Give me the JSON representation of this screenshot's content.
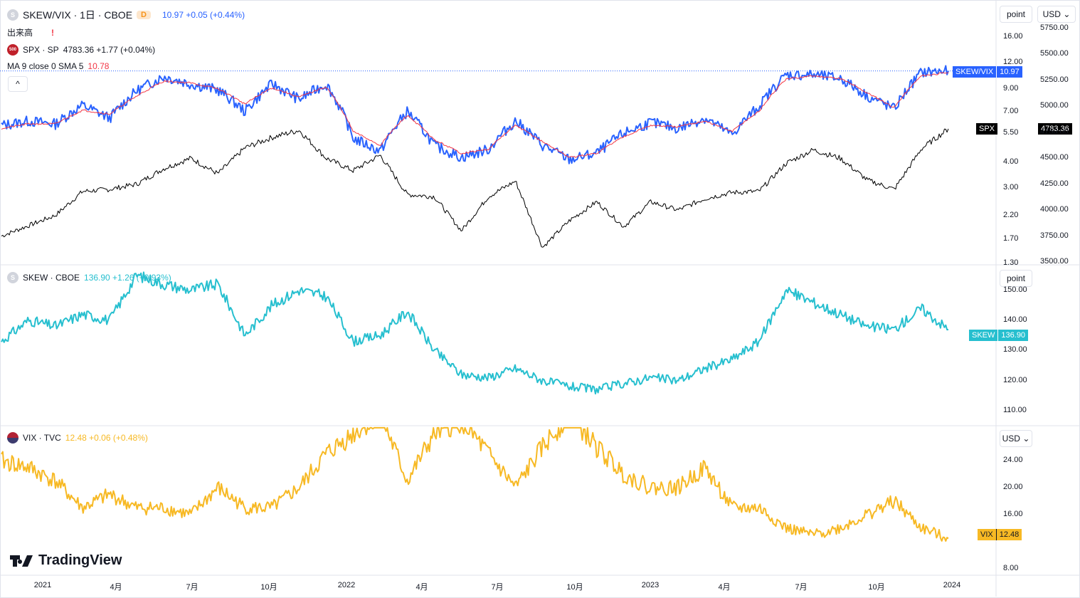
{
  "header": {
    "symbol": "SKEW/VIX · 1日 · CBOE",
    "badge": "D",
    "price_change": "10.97  +0.05 (+0.44%)",
    "volume_label": "出来高",
    "warning": "!",
    "spx_icon_text": "500",
    "spx_label": "SPX · SP",
    "spx_values": "4783.36  +1.77 (+0.04%)",
    "ma_label": "MA 9 close 0 SMA 5",
    "ma_value": "10.78",
    "collapse": "^"
  },
  "pane_skew": {
    "icon_text": "S",
    "label": "SKEW · CBOE",
    "values": "136.90  +1.26 (+0.93%)"
  },
  "pane_vix": {
    "label": "VIX · TVC",
    "values": "12.48  +0.06 (+0.48%)"
  },
  "right_controls": {
    "scale1": "point",
    "currency1": "USD",
    "scale2": "point",
    "currency2": "USD"
  },
  "tags": {
    "skewvix_name": "SKEW/VIX",
    "skewvix_val": "10.97",
    "spx_name": "SPX",
    "spx_val": "4783.36",
    "skew_name": "SKEW",
    "skew_val": "136.90",
    "vix_name": "VIX",
    "vix_val": "12.48"
  },
  "axes": {
    "ratio_ticks": [
      "16.00",
      "12.00",
      "9.00",
      "7.00",
      "5.50",
      "4.00",
      "3.00",
      "2.20",
      "1.70",
      "1.30"
    ],
    "spx_ticks": [
      "5750.00",
      "5500.00",
      "5250.00",
      "5000.00",
      "4750.00",
      "4500.00",
      "4250.00",
      "4000.00",
      "3750.00",
      "3500.00"
    ],
    "skew_ticks": [
      "150.00",
      "140.00",
      "130.00",
      "120.00",
      "110.00"
    ],
    "vix_ticks": [
      "24.00",
      "20.00",
      "16.00",
      "8.00"
    ],
    "x_labels": [
      "2021",
      "4月",
      "7月",
      "10月",
      "2022",
      "4月",
      "7月",
      "10月",
      "2023",
      "4月",
      "7月",
      "10月",
      "2024"
    ]
  },
  "colors": {
    "skewvix": "#2962ff",
    "ma": "#f23645",
    "spx": "#000000",
    "skew": "#26bfcf",
    "vix": "#f7b924"
  },
  "logo": "TradingView",
  "chart_data": [
    {
      "type": "line",
      "title": "SKEW/VIX · 1日 · CBOE",
      "x": [
        "2021-01",
        "2021-02",
        "2021-03",
        "2021-04",
        "2021-05",
        "2021-06",
        "2021-07",
        "2021-08",
        "2021-09",
        "2021-10",
        "2021-11",
        "2021-12",
        "2022-01",
        "2022-02",
        "2022-03",
        "2022-04",
        "2022-05",
        "2022-06",
        "2022-07",
        "2022-08",
        "2022-09",
        "2022-10",
        "2022-11",
        "2022-12",
        "2023-01",
        "2023-02",
        "2023-03",
        "2023-04",
        "2023-05",
        "2023-06",
        "2023-07",
        "2023-08",
        "2023-09",
        "2023-10",
        "2023-11",
        "2023-12"
      ],
      "series": [
        {
          "name": "SKEW/VIX",
          "values": [
            6.0,
            6.3,
            6.1,
            7.5,
            6.5,
            8.8,
            10.3,
            9.5,
            8.9,
            7.0,
            9.5,
            8.0,
            9.5,
            5.2,
            4.5,
            7.0,
            4.8,
            4.2,
            4.6,
            6.3,
            4.8,
            4.1,
            4.4,
            5.5,
            6.2,
            5.8,
            6.5,
            5.4,
            7.4,
            10.5,
            10.5,
            10.1,
            8.3,
            7.2,
            10.8,
            10.97
          ]
        },
        {
          "name": "MA 9 close 0 SMA 5",
          "values": [
            5.8,
            6.1,
            6.1,
            7.1,
            6.8,
            8.3,
            9.8,
            9.6,
            9.0,
            7.6,
            9.1,
            8.2,
            9.2,
            5.6,
            4.8,
            6.7,
            5.1,
            4.4,
            4.6,
            6.0,
            5.0,
            4.2,
            4.4,
            5.3,
            6.0,
            5.9,
            6.3,
            5.6,
            7.0,
            10.0,
            10.4,
            10.1,
            8.6,
            7.3,
            10.4,
            10.78
          ]
        },
        {
          "name": "SPX",
          "values": [
            3750,
            3850,
            3950,
            4180,
            4200,
            4250,
            4400,
            4500,
            4350,
            4600,
            4700,
            4770,
            4500,
            4380,
            4530,
            4150,
            4130,
            3800,
            4130,
            4280,
            3640,
            3900,
            4080,
            3840,
            4080,
            4000,
            4110,
            4170,
            4180,
            4450,
            4580,
            4500,
            4290,
            4200,
            4590,
            4783.36
          ]
        }
      ],
      "ylim": [
        1.3,
        16.0
      ],
      "ylim_right": [
        3500,
        5750
      ],
      "y_scale": "log"
    },
    {
      "type": "line",
      "title": "SKEW · CBOE",
      "x": [
        "2021-01",
        "2021-02",
        "2021-03",
        "2021-04",
        "2021-05",
        "2021-06",
        "2021-07",
        "2021-08",
        "2021-09",
        "2021-10",
        "2021-11",
        "2021-12",
        "2022-01",
        "2022-02",
        "2022-03",
        "2022-04",
        "2022-05",
        "2022-06",
        "2022-07",
        "2022-08",
        "2022-09",
        "2022-10",
        "2022-11",
        "2022-12",
        "2023-01",
        "2023-02",
        "2023-03",
        "2023-04",
        "2023-05",
        "2023-06",
        "2023-07",
        "2023-08",
        "2023-09",
        "2023-10",
        "2023-11",
        "2023-12"
      ],
      "series": [
        {
          "name": "SKEW",
          "values": [
            133,
            140,
            138,
            142,
            140,
            155,
            152,
            150,
            152,
            135,
            145,
            150,
            148,
            133,
            135,
            143,
            130,
            122,
            121,
            124,
            120,
            118,
            117,
            119,
            121,
            120,
            124,
            127,
            133,
            150,
            146,
            142,
            138,
            137,
            144,
            136.9
          ]
        }
      ],
      "ylim": [
        105,
        157
      ]
    },
    {
      "type": "line",
      "title": "VIX · TVC",
      "x": [
        "2021-01",
        "2021-02",
        "2021-03",
        "2021-04",
        "2021-05",
        "2021-06",
        "2021-07",
        "2021-08",
        "2021-09",
        "2021-10",
        "2021-11",
        "2021-12",
        "2022-01",
        "2022-02",
        "2022-03",
        "2022-04",
        "2022-05",
        "2022-06",
        "2022-07",
        "2022-08",
        "2022-09",
        "2022-10",
        "2022-11",
        "2022-12",
        "2023-01",
        "2023-02",
        "2023-03",
        "2023-04",
        "2023-05",
        "2023-06",
        "2023-07",
        "2023-08",
        "2023-09",
        "2023-10",
        "2023-11",
        "2023-12"
      ],
      "series": [
        {
          "name": "VIX",
          "values": [
            24,
            23,
            21,
            17,
            19,
            17,
            17,
            16,
            20,
            17,
            17,
            20,
            25,
            28,
            31,
            21,
            28,
            30,
            25,
            20,
            26,
            31,
            26,
            22,
            20,
            20,
            23,
            17,
            17,
            14,
            13,
            14,
            16,
            18,
            14,
            12.48
          ]
        }
      ],
      "ylim": [
        7,
        29
      ]
    }
  ]
}
